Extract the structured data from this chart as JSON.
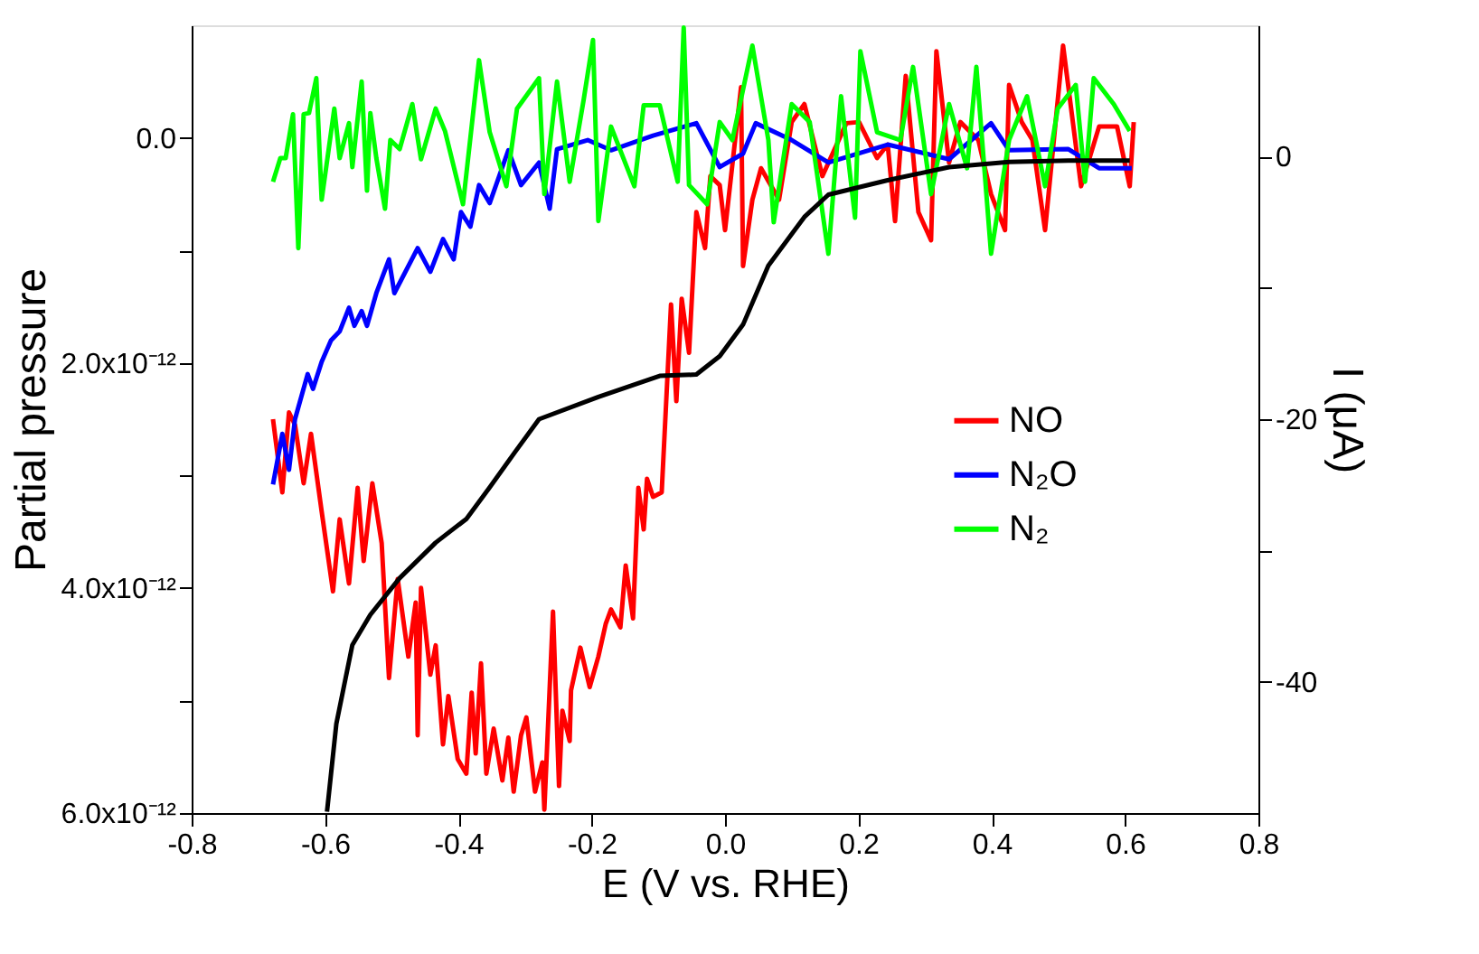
{
  "chart_data": {
    "type": "line",
    "xlabel": "E (V vs. RHE)",
    "ylabel": "Partial pressure",
    "y2label": "I (μA)",
    "xlim": [
      -0.8,
      0.8
    ],
    "xticks": [
      -0.8,
      -0.6,
      -0.4,
      -0.2,
      {
        "value": 0,
        "label": "0.0"
      },
      0.2,
      0.4,
      0.6,
      0.8
    ],
    "ylim": [
      6e-12,
      -1e-12
    ],
    "yticks": [
      {
        "value": 0,
        "label": "0.0"
      },
      {
        "value": 1e-12,
        "label": null
      },
      {
        "value": 2e-12,
        "label": "2.0x10⁻¹²"
      },
      {
        "value": 3e-12,
        "label": null
      },
      {
        "value": 4e-12,
        "label": "4.0x10⁻¹²"
      },
      {
        "value": 5e-12,
        "label": null
      },
      {
        "value": 6e-12,
        "label": "6.0x10⁻¹²"
      }
    ],
    "y2lim": [
      -50,
      10
    ],
    "y2ticks": [
      {
        "value": 0,
        "label": "0"
      },
      {
        "value": -10,
        "label": null
      },
      {
        "value": -20,
        "label": "-20"
      },
      {
        "value": -30,
        "label": null
      },
      {
        "value": -40,
        "label": "-40"
      }
    ],
    "grid": false,
    "legend": "right",
    "marker": "none",
    "line_style": "solid",
    "series": [
      {
        "name": "NO",
        "color": "#ff0000",
        "x": [
          -0.678,
          -0.664,
          -0.654,
          -0.645,
          -0.632,
          -0.621,
          -0.605,
          -0.588,
          -0.578,
          -0.564,
          -0.551,
          -0.542,
          -0.529,
          -0.515,
          -0.504,
          -0.491,
          -0.475,
          -0.464,
          -0.461,
          -0.456,
          -0.442,
          -0.434,
          -0.423,
          -0.415,
          -0.401,
          -0.388,
          -0.38,
          -0.374,
          -0.366,
          -0.358,
          -0.347,
          -0.334,
          -0.325,
          -0.317,
          -0.306,
          -0.298,
          -0.285,
          -0.274,
          -0.271,
          -0.258,
          -0.249,
          -0.244,
          -0.233,
          -0.231,
          -0.217,
          -0.203,
          -0.19,
          -0.179,
          -0.171,
          -0.157,
          -0.149,
          -0.138,
          -0.13,
          -0.122,
          -0.117,
          -0.108,
          -0.095,
          -0.081,
          -0.073,
          -0.065,
          -0.054,
          -0.043,
          -0.03,
          -0.022,
          -0.008,
          0.0,
          0.024,
          0.027,
          0.041,
          0.054,
          0.081,
          0.1,
          0.119,
          0.146,
          0.182,
          0.201,
          0.228,
          0.244,
          0.255,
          0.271,
          0.29,
          0.309,
          0.317,
          0.336,
          0.353,
          0.38,
          0.399,
          0.42,
          0.426,
          0.445,
          0.461,
          0.48,
          0.507,
          0.534,
          0.561,
          0.588,
          0.607,
          0.613
        ],
        "values": [
          2.5e-12,
          3.15e-12,
          2.44e-12,
          2.55e-12,
          3.07e-12,
          2.63e-12,
          3.32e-12,
          4.03e-12,
          3.39e-12,
          3.96e-12,
          3.11e-12,
          3.76e-12,
          3.07e-12,
          3.6e-12,
          4.8e-12,
          3.92e-12,
          4.61e-12,
          4.13e-12,
          5.31e-12,
          4e-12,
          4.77e-12,
          4.51e-12,
          5.39e-12,
          4.96e-12,
          5.52e-12,
          5.65e-12,
          4.93e-12,
          5.47e-12,
          4.67e-12,
          5.65e-12,
          5.25e-12,
          5.71e-12,
          5.33e-12,
          5.81e-12,
          5.31e-12,
          5.15e-12,
          5.81e-12,
          5.55e-12,
          5.97e-12,
          4.21e-12,
          5.76e-12,
          5.09e-12,
          5.36e-12,
          4.91e-12,
          4.53e-12,
          4.88e-12,
          4.61e-12,
          4.32e-12,
          4.19e-12,
          4.35e-12,
          3.8e-12,
          4.27e-12,
          3.11e-12,
          3.48e-12,
          3.03e-12,
          3.19e-12,
          3.15e-12,
          1.48e-12,
          2.34e-12,
          1.43e-12,
          1.91e-12,
          6.6e-13,
          9.8e-13,
          3.4e-13,
          4.2e-13,
          8.2e-13,
          -4.5e-13,
          1.14e-12,
          5.5e-13,
          2.7e-13,
          5.5e-13,
          -1.4e-13,
          -3e-13,
          3.4e-13,
          -1.3e-13,
          -1.4e-13,
          1.8e-13,
          6e-14,
          7.4e-13,
          -5.5e-13,
          6.6e-13,
          9.1e-13,
          -7.7e-13,
          2.2e-13,
          -1.4e-13,
          2e-14,
          5e-13,
          8.2e-13,
          -4.7e-13,
          -1.4e-13,
          2e-14,
          8.2e-13,
          -8.2e-13,
          4.3e-13,
          -1e-13,
          -1e-13,
          4.3e-13,
          -1.4e-13
        ]
      },
      {
        "name": "N₂O",
        "color": "#0000ff",
        "x": [
          -0.678,
          -0.664,
          -0.654,
          -0.645,
          -0.626,
          -0.618,
          -0.605,
          -0.591,
          -0.578,
          -0.564,
          -0.556,
          -0.545,
          -0.537,
          -0.523,
          -0.504,
          -0.496,
          -0.461,
          -0.442,
          -0.423,
          -0.407,
          -0.396,
          -0.382,
          -0.369,
          -0.353,
          -0.325,
          -0.306,
          -0.279,
          -0.263,
          -0.252,
          -0.206,
          -0.171,
          -0.108,
          -0.043,
          -0.008,
          0.027,
          0.046,
          0.1,
          0.155,
          0.244,
          0.336,
          0.399,
          0.426,
          0.515,
          0.561,
          0.61
        ],
        "values": [
          3.08e-12,
          2.63e-12,
          2.95e-12,
          2.5e-12,
          2.1e-12,
          2.23e-12,
          1.99e-12,
          1.8e-12,
          1.72e-12,
          1.51e-12,
          1.67e-12,
          1.54e-12,
          1.67e-12,
          1.38e-12,
          1.08e-12,
          1.38e-12,
          9.8e-13,
          1.19e-12,
          9e-13,
          1.08e-12,
          6.6e-13,
          7.9e-13,
          4.2e-13,
          5.8e-13,
          1.1e-13,
          4.2e-13,
          2.2e-13,
          6.3e-13,
          1e-13,
          2e-14,
          1.1e-13,
          -2e-14,
          -1.3e-13,
          2.6e-13,
          1.4e-13,
          -1.3e-13,
          2e-14,
          2.2e-13,
          6e-14,
          1.9e-13,
          -1.3e-13,
          1.1e-13,
          1e-13,
          2.7e-13,
          2.7e-13
        ]
      },
      {
        "name": "N₂",
        "color": "#00ff00",
        "x": [
          -0.678,
          -0.667,
          -0.659,
          -0.648,
          -0.64,
          -0.632,
          -0.624,
          -0.613,
          -0.605,
          -0.586,
          -0.578,
          -0.564,
          -0.559,
          -0.545,
          -0.537,
          -0.532,
          -0.523,
          -0.51,
          -0.502,
          -0.488,
          -0.469,
          -0.456,
          -0.434,
          -0.42,
          -0.393,
          -0.369,
          -0.353,
          -0.328,
          -0.312,
          -0.279,
          -0.271,
          -0.252,
          -0.233,
          -0.212,
          -0.198,
          -0.19,
          -0.171,
          -0.136,
          -0.122,
          -0.098,
          -0.071,
          -0.062,
          -0.054,
          -0.027,
          -0.008,
          0.011,
          0.041,
          0.065,
          0.073,
          0.1,
          0.127,
          0.155,
          0.174,
          0.195,
          0.203,
          0.228,
          0.263,
          0.282,
          0.309,
          0.336,
          0.363,
          0.377,
          0.399,
          0.426,
          0.453,
          0.48,
          0.499,
          0.526,
          0.54,
          0.553,
          0.583,
          0.607
        ],
        "values": [
          3.9e-13,
          1.8e-13,
          1.8e-13,
          -2.1e-13,
          9.8e-13,
          -2.1e-13,
          -2.2e-13,
          -5.3e-13,
          5.5e-13,
          -2.6e-13,
          1.8e-13,
          -1.3e-13,
          2.6e-13,
          -5e-13,
          4.7e-13,
          -2.2e-13,
          1.8e-13,
          6.3e-13,
          2e-14,
          1e-13,
          -3e-13,
          1.9e-13,
          -2.6e-13,
          -6e-14,
          5.9e-13,
          -6.9e-13,
          -5e-14,
          4.3e-13,
          -2.6e-13,
          -5.3e-13,
          5e-13,
          -5e-13,
          3.9e-13,
          -3.4e-13,
          -8.7e-13,
          7.4e-13,
          -1e-13,
          4.3e-13,
          -2.9e-13,
          -2.9e-13,
          3.9e-13,
          -9.8e-13,
          4.2e-13,
          5.9e-13,
          -1.4e-13,
          2e-14,
          -8.2e-13,
          2e-14,
          7.5e-13,
          -3e-13,
          -1.4e-13,
          1.03e-12,
          -3.7e-13,
          7.1e-13,
          -7.7e-13,
          -5e-14,
          2e-14,
          -6.3e-13,
          5e-13,
          -3e-13,
          2.7e-13,
          -6.3e-13,
          1.03e-12,
          2e-14,
          -3.7e-13,
          4.3e-13,
          -2.6e-13,
          -4.7e-13,
          3.9e-13,
          -5.3e-13,
          -3e-13,
          -6e-14
        ]
      },
      {
        "color": "#000000",
        "axis": "y2",
        "x": [
          -0.597,
          -0.583,
          -0.559,
          -0.532,
          -0.488,
          -0.434,
          -0.388,
          -0.353,
          -0.315,
          -0.279,
          -0.19,
          -0.098,
          -0.043,
          -0.008,
          0.027,
          0.065,
          0.119,
          0.155,
          0.244,
          0.336,
          0.426,
          0.515,
          0.607
        ],
        "values": [
          -49.9,
          -43.2,
          -37.2,
          -34.9,
          -32.1,
          -29.4,
          -27.6,
          -25.2,
          -22.5,
          -20.0,
          -18.3,
          -16.7,
          -16.6,
          -15.2,
          -12.8,
          -8.3,
          -4.6,
          -2.9,
          -1.8,
          -0.8,
          -0.4,
          -0.3,
          -0.3
        ]
      }
    ]
  }
}
